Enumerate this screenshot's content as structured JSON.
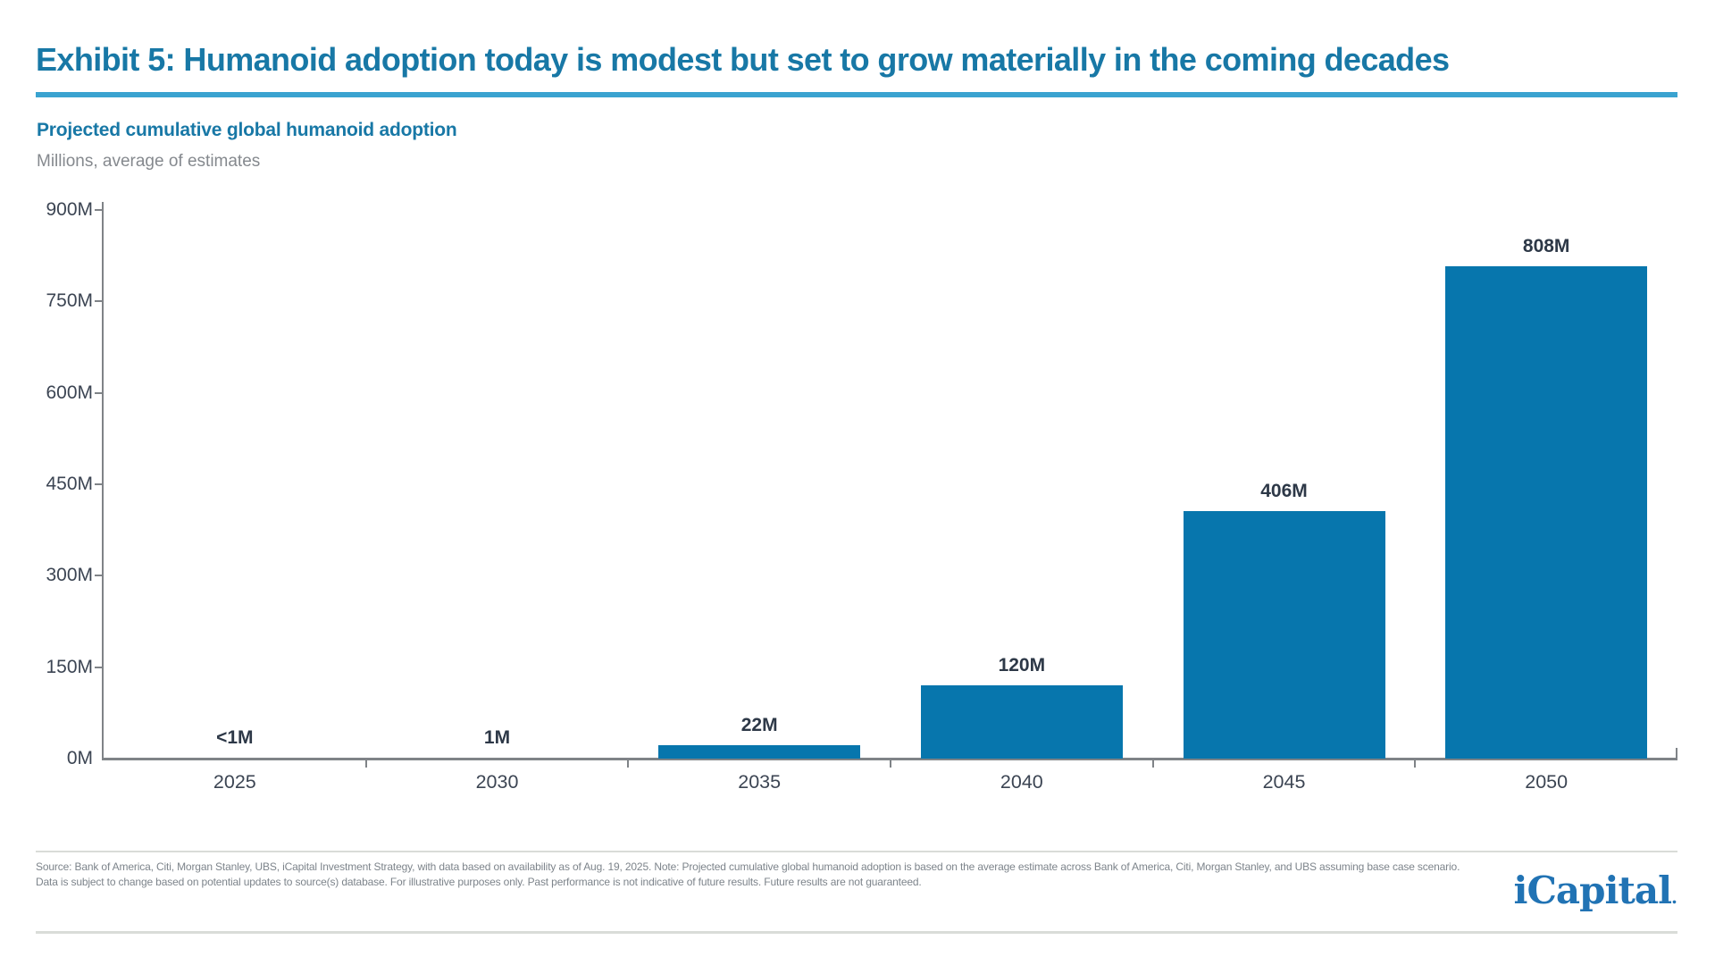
{
  "header": {
    "title": "Exhibit 5: Humanoid adoption today is modest but set to grow materially in the coming decades"
  },
  "chart": {
    "subtitle": "Projected cumulative global humanoid adoption",
    "units_note": "Millions, average of estimates"
  },
  "chart_data": {
    "type": "bar",
    "title": "Projected cumulative global humanoid adoption",
    "units": "Millions, average of estimates",
    "categories": [
      "2025",
      "2030",
      "2035",
      "2040",
      "2045",
      "2050"
    ],
    "values": [
      0.5,
      1,
      22,
      120,
      406,
      808
    ],
    "value_labels": [
      "<1M",
      "1M",
      "22M",
      "120M",
      "406M",
      "808M"
    ],
    "xlabel": "",
    "ylabel": "Millions",
    "ylim": [
      0,
      900
    ],
    "ytick_step": 150,
    "ytick_labels": [
      "0M",
      "150M",
      "300M",
      "450M",
      "600M",
      "750M",
      "900M"
    ],
    "grid": false,
    "legend_position": "none"
  },
  "colors": {
    "accent_title": "#1878a6",
    "title_rule": "#3aa3d0",
    "bar": "#0776ad",
    "axis": "#7f8387",
    "tick_label": "#3c4553",
    "value_label": "#2d3847",
    "units_gray": "#85898e",
    "footer_gray": "#7d848b",
    "separator": "#d9dcd8",
    "logo_blue": "#2173b4"
  },
  "footer": {
    "line1": "Source: Bank of America, Citi, Morgan Stanley, UBS, iCapital Investment Strategy, with data based on availability as of Aug. 19, 2025. Note: Projected cumulative global humanoid adoption is based on the average estimate across Bank of America, Citi, Morgan Stanley, and UBS assuming base case scenario.",
    "line2": "Data is subject to change based on potential updates to source(s) database. For illustrative purposes only. Past performance is not indicative of future results. Future results are not guaranteed.",
    "logo_text": "iCapital",
    "logo_dot": "."
  }
}
